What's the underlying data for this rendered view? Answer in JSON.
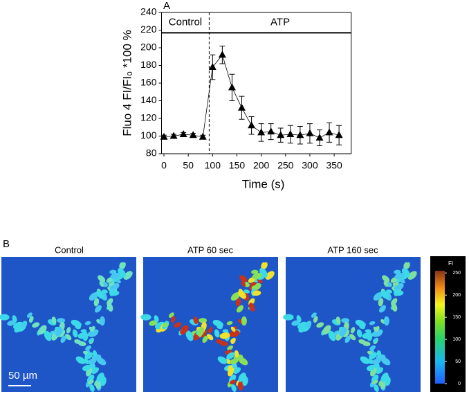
{
  "panel_labels": [
    "A",
    "B"
  ],
  "chart_data": {
    "type": "line",
    "xlabel": "Time (s)",
    "ylabel": "Fluo 4 FI/FI₀ *100 %",
    "x": [
      0,
      20,
      40,
      60,
      80,
      100,
      120,
      140,
      160,
      180,
      200,
      220,
      240,
      260,
      280,
      300,
      320,
      340,
      360
    ],
    "values": [
      99,
      100,
      102,
      101,
      99,
      178,
      192,
      155,
      132,
      112,
      104,
      105,
      101,
      102,
      101,
      103,
      98,
      104,
      101
    ],
    "errors": [
      2,
      2,
      2,
      2,
      2,
      14,
      10,
      15,
      13,
      10,
      10,
      9,
      8,
      10,
      10,
      11,
      9,
      11,
      11
    ],
    "color": "#000000",
    "xlim": [
      -5,
      385
    ],
    "xticks": [
      0,
      50,
      100,
      150,
      200,
      250,
      300,
      350
    ],
    "ylim": [
      80,
      240
    ],
    "yticks": [
      80,
      100,
      120,
      140,
      160,
      180,
      200,
      220,
      240
    ],
    "annotations": [
      "Control",
      "ATP"
    ],
    "stimulus_time": 93,
    "header_line": 217
  },
  "images": {
    "titles": [
      "Control",
      "ATP 60 sec",
      "ATP 160 sec"
    ],
    "scale_bar": "50 µm",
    "colorbar": {
      "label": "FI",
      "clim": [
        0,
        255
      ],
      "ticks": [
        0,
        50,
        100,
        150,
        200,
        250
      ]
    }
  }
}
